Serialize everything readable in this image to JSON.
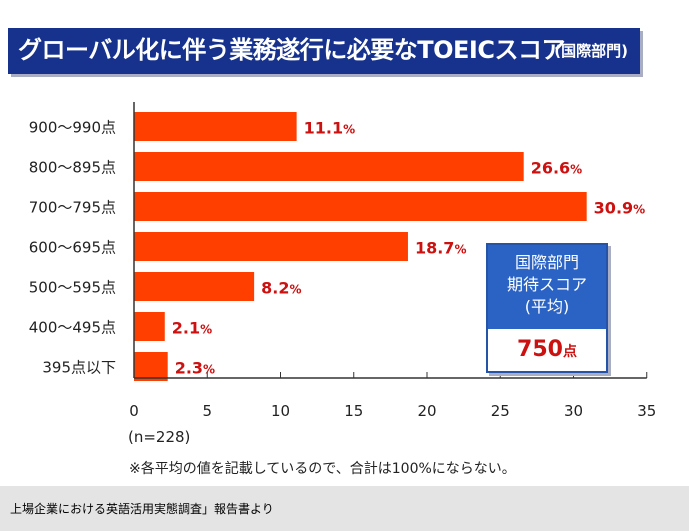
{
  "header": {
    "title": "グローバル化に伴う業務遂行に必要なTOEICスコア",
    "subtitle": "(国際部門)"
  },
  "colors": {
    "bar": "#ff3f00",
    "label": "#cc1111",
    "title_bg": "#16328c",
    "box_head": "#2b63c4"
  },
  "chart_data": {
    "type": "bar",
    "orientation": "horizontal",
    "categories": [
      "900〜990点",
      "800〜895点",
      "700〜795点",
      "600〜695点",
      "500〜595点",
      "400〜495点",
      "395点以下"
    ],
    "values": [
      11.1,
      26.6,
      30.9,
      18.7,
      8.2,
      2.1,
      2.3
    ],
    "value_labels": [
      "11.1",
      "26.6",
      "30.9",
      "18.7",
      "8.2",
      "2.1",
      "2.3"
    ],
    "value_unit": "%",
    "xlim": [
      0,
      35
    ],
    "xticks": [
      0,
      5,
      10,
      15,
      20,
      25,
      30,
      35
    ],
    "xticklabels": [
      "0",
      "5",
      "10",
      "15",
      "20",
      "25",
      "30",
      "35"
    ],
    "xlabel": "(n=228)",
    "grid": false
  },
  "callout": {
    "line1": "国際部門",
    "line2": "期待スコア",
    "line3": "(平均)",
    "value": "750",
    "unit": "点"
  },
  "note": "※各平均の値を記載しているので、合計は100%にならない。",
  "footer": {
    "source": "上場企業における英語活用実態調査」報告書より"
  }
}
